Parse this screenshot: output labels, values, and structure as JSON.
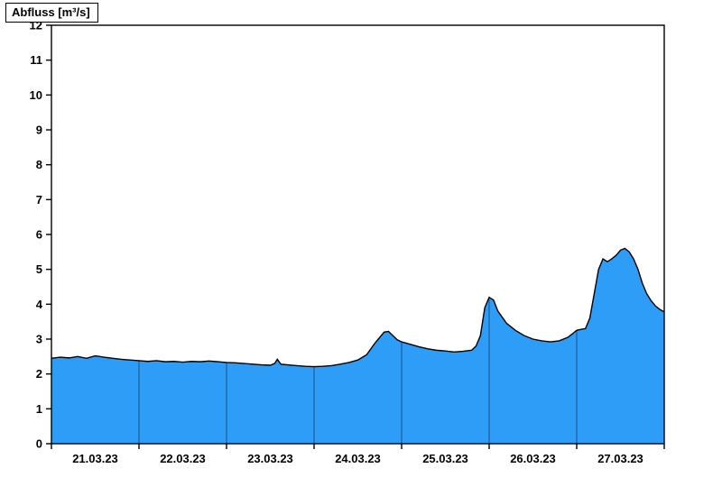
{
  "chart_data": {
    "type": "area",
    "title": "Abfluss [m³/s]",
    "xlabel": "",
    "ylabel": "Abfluss [m³/s]",
    "ylim": [
      0,
      12
    ],
    "y_ticks": [
      0,
      1,
      2,
      3,
      4,
      5,
      6,
      7,
      8,
      9,
      10,
      11,
      12
    ],
    "x_range": [
      0,
      7
    ],
    "x_labels": [
      "21.03.23",
      "22.03.23",
      "23.03.23",
      "24.03.23",
      "25.03.23",
      "26.03.23",
      "27.03.23"
    ],
    "grid": "off",
    "legend": "none",
    "colors": {
      "fill": "#2e9df7",
      "line": "#000000",
      "day_separator": "#1c4f82",
      "axis": "#000000"
    },
    "series": [
      {
        "name": "Abfluss",
        "unit": "m³/s",
        "t_days": [
          0,
          0.1,
          0.2,
          0.3,
          0.4,
          0.5,
          0.6,
          0.7,
          0.8,
          0.9,
          1.0,
          1.1,
          1.2,
          1.3,
          1.4,
          1.5,
          1.6,
          1.7,
          1.8,
          1.9,
          2.0,
          2.1,
          2.2,
          2.3,
          2.4,
          2.5,
          2.55,
          2.58,
          2.62,
          2.7,
          2.8,
          2.9,
          3.0,
          3.1,
          3.2,
          3.3,
          3.4,
          3.5,
          3.6,
          3.7,
          3.8,
          3.85,
          3.9,
          3.95,
          4.0,
          4.1,
          4.2,
          4.3,
          4.4,
          4.5,
          4.6,
          4.7,
          4.8,
          4.85,
          4.9,
          4.95,
          5.0,
          5.05,
          5.1,
          5.2,
          5.3,
          5.4,
          5.5,
          5.6,
          5.7,
          5.8,
          5.9,
          6.0,
          6.05,
          6.1,
          6.15,
          6.2,
          6.25,
          6.3,
          6.35,
          6.4,
          6.45,
          6.5,
          6.55,
          6.6,
          6.65,
          6.7,
          6.75,
          6.8,
          6.85,
          6.9,
          6.95,
          7.0
        ],
        "values": [
          2.45,
          2.48,
          2.46,
          2.5,
          2.45,
          2.52,
          2.48,
          2.45,
          2.42,
          2.4,
          2.38,
          2.36,
          2.38,
          2.35,
          2.36,
          2.34,
          2.36,
          2.35,
          2.37,
          2.35,
          2.33,
          2.32,
          2.3,
          2.28,
          2.26,
          2.25,
          2.3,
          2.42,
          2.28,
          2.26,
          2.24,
          2.22,
          2.21,
          2.22,
          2.24,
          2.28,
          2.33,
          2.4,
          2.55,
          2.9,
          3.2,
          3.22,
          3.1,
          2.98,
          2.92,
          2.85,
          2.78,
          2.72,
          2.68,
          2.66,
          2.63,
          2.65,
          2.68,
          2.8,
          3.1,
          3.9,
          4.2,
          4.12,
          3.8,
          3.45,
          3.25,
          3.1,
          3.0,
          2.95,
          2.92,
          2.95,
          3.05,
          3.25,
          3.28,
          3.3,
          3.6,
          4.3,
          5.0,
          5.3,
          5.22,
          5.3,
          5.4,
          5.55,
          5.6,
          5.5,
          5.3,
          5.0,
          4.6,
          4.3,
          4.1,
          3.95,
          3.85,
          3.78
        ]
      }
    ]
  }
}
